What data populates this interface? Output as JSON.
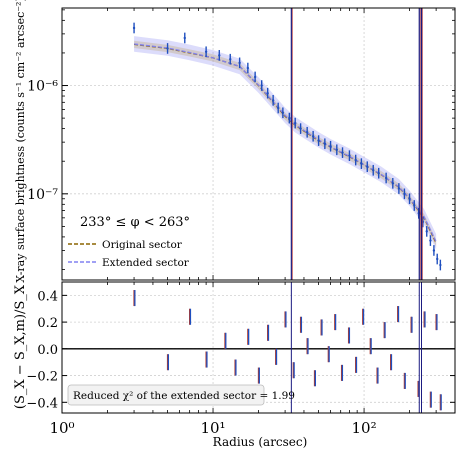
{
  "chart_data": [
    {
      "type": "scatter",
      "panel": "surface brightness profile",
      "xlabel": "Radius (arcsec)",
      "ylabel": "X-ray surface brightness (counts s⁻¹ cm⁻² arcsec⁻²)",
      "x_scale": "log",
      "y_scale": "log",
      "xlim": [
        1,
        400
      ],
      "ylim": [
        1.6e-08,
        5.2e-06
      ],
      "x_ticks": [
        {
          "value": 1,
          "label": "10⁰"
        },
        {
          "value": 10,
          "label": "10¹"
        },
        {
          "value": 100,
          "label": "10²"
        }
      ],
      "y_ticks": [
        {
          "value": 1e-07,
          "label": "10⁻⁷"
        },
        {
          "value": 1e-06,
          "label": "10⁻⁶"
        }
      ],
      "grid": true,
      "annotation": "233° ≤ φ < 263°",
      "legend": {
        "placement": "lower-left",
        "entries": [
          {
            "label": "Original sector",
            "color": "#8b6500",
            "style": "dashed"
          },
          {
            "label": "Extended sector",
            "color": "#8080f0",
            "style": "dashed"
          }
        ]
      },
      "vertical_lines": [
        33,
        232,
        240
      ],
      "series": [
        {
          "name": "Original sector",
          "color": "#8b6500",
          "x": [
            3,
            5,
            7,
            10,
            15,
            20,
            25,
            30,
            35,
            40,
            50,
            60,
            80,
            100,
            130,
            170,
            200,
            250,
            300
          ],
          "values": [
            2.4e-06,
            2.2e-06,
            2e-06,
            1.8e-06,
            1.5e-06,
            1e-06,
            7e-07,
            5.2e-07,
            4.3e-07,
            3.8e-07,
            3.1e-07,
            2.7e-07,
            2.2e-07,
            1.85e-07,
            1.5e-07,
            1.15e-07,
            9e-08,
            6e-08,
            3.5e-08
          ]
        },
        {
          "name": "Extended sector",
          "color": "#8080f0",
          "x": [
            3,
            5,
            7,
            10,
            15,
            20,
            25,
            30,
            35,
            40,
            50,
            60,
            80,
            100,
            130,
            170,
            200,
            250,
            300
          ],
          "values": [
            2.42e-06,
            2.22e-06,
            2.02e-06,
            1.8e-06,
            1.5e-06,
            1.01e-06,
            7.1e-07,
            5.3e-07,
            4.35e-07,
            3.85e-07,
            3.15e-07,
            2.72e-07,
            2.22e-07,
            1.86e-07,
            1.51e-07,
            1.16e-07,
            9.1e-08,
            6.1e-08,
            3.6e-08
          ]
        }
      ],
      "data_points": [
        {
          "x": 3,
          "y": 3.4e-06
        },
        {
          "x": 5,
          "y": 2.2e-06
        },
        {
          "x": 6.5,
          "y": 2.75e-06
        },
        {
          "x": 9,
          "y": 2.05e-06
        },
        {
          "x": 11,
          "y": 1.9e-06
        },
        {
          "x": 13,
          "y": 1.75e-06
        },
        {
          "x": 15,
          "y": 1.62e-06
        },
        {
          "x": 17,
          "y": 1.45e-06
        },
        {
          "x": 19,
          "y": 1.2e-06
        },
        {
          "x": 21,
          "y": 1e-06
        },
        {
          "x": 23,
          "y": 8.5e-07
        },
        {
          "x": 25,
          "y": 7.3e-07
        },
        {
          "x": 27,
          "y": 6.2e-07
        },
        {
          "x": 29,
          "y": 5.6e-07
        },
        {
          "x": 32,
          "y": 5e-07
        },
        {
          "x": 35,
          "y": 4.5e-07
        },
        {
          "x": 38,
          "y": 4e-07
        },
        {
          "x": 42,
          "y": 3.7e-07
        },
        {
          "x": 46,
          "y": 3.4e-07
        },
        {
          "x": 50,
          "y": 3.1e-07
        },
        {
          "x": 55,
          "y": 2.9e-07
        },
        {
          "x": 60,
          "y": 2.75e-07
        },
        {
          "x": 66,
          "y": 2.55e-07
        },
        {
          "x": 72,
          "y": 2.4e-07
        },
        {
          "x": 80,
          "y": 2.25e-07
        },
        {
          "x": 88,
          "y": 2.05e-07
        },
        {
          "x": 96,
          "y": 1.9e-07
        },
        {
          "x": 105,
          "y": 1.78e-07
        },
        {
          "x": 115,
          "y": 1.65e-07
        },
        {
          "x": 125,
          "y": 1.55e-07
        },
        {
          "x": 140,
          "y": 1.4e-07
        },
        {
          "x": 155,
          "y": 1.25e-07
        },
        {
          "x": 170,
          "y": 1.12e-07
        },
        {
          "x": 185,
          "y": 1e-07
        },
        {
          "x": 200,
          "y": 9e-08
        },
        {
          "x": 215,
          "y": 7.8e-08
        },
        {
          "x": 230,
          "y": 6.6e-08
        },
        {
          "x": 245,
          "y": 5.5e-08
        },
        {
          "x": 260,
          "y": 4.5e-08
        },
        {
          "x": 275,
          "y": 3.7e-08
        },
        {
          "x": 290,
          "y": 3e-08
        },
        {
          "x": 305,
          "y": 2.5e-08
        },
        {
          "x": 320,
          "y": 2.2e-08
        }
      ]
    },
    {
      "type": "scatter",
      "panel": "residuals",
      "xlabel": "Radius (arcsec)",
      "ylabel": "(S_X − S_X,m)/S_X",
      "x_scale": "log",
      "xlim": [
        1,
        400
      ],
      "ylim": [
        -0.48,
        0.5
      ],
      "x_ticks": [
        {
          "value": 1,
          "label": "10⁰"
        },
        {
          "value": 10,
          "label": "10¹"
        },
        {
          "value": 100,
          "label": "10²"
        }
      ],
      "y_ticks": [
        {
          "value": 0.4,
          "label": "0.4"
        },
        {
          "value": 0.2,
          "label": "0.2"
        },
        {
          "value": 0.0,
          "label": "0.0"
        },
        {
          "value": -0.2,
          "label": "−0.2"
        },
        {
          "value": -0.4,
          "label": "−0.4"
        }
      ],
      "grid": true,
      "reference_line": 0,
      "annotation": "Reduced χ² of the extended sector = 1.99",
      "vertical_lines": [
        33,
        232,
        240
      ],
      "series": [
        {
          "name": "Extended sector",
          "color": "#1f4fbf",
          "x": [
            3,
            5,
            7,
            9,
            12,
            14,
            17,
            20,
            23,
            26,
            30,
            34,
            38,
            42,
            47,
            52,
            58,
            64,
            71,
            79,
            88,
            98,
            110,
            122,
            136,
            150,
            167,
            185,
            205,
            228,
            250,
            275,
            300,
            320
          ],
          "values": [
            0.38,
            -0.1,
            0.24,
            -0.08,
            0.06,
            -0.14,
            0.09,
            -0.2,
            0.12,
            -0.06,
            0.22,
            -0.16,
            0.18,
            0.02,
            -0.22,
            0.16,
            -0.04,
            0.2,
            -0.18,
            0.1,
            -0.12,
            0.24,
            0.02,
            -0.2,
            0.14,
            -0.1,
            0.26,
            -0.24,
            0.18,
            -0.3,
            0.22,
            -0.38,
            0.2,
            -0.4
          ]
        }
      ]
    }
  ]
}
